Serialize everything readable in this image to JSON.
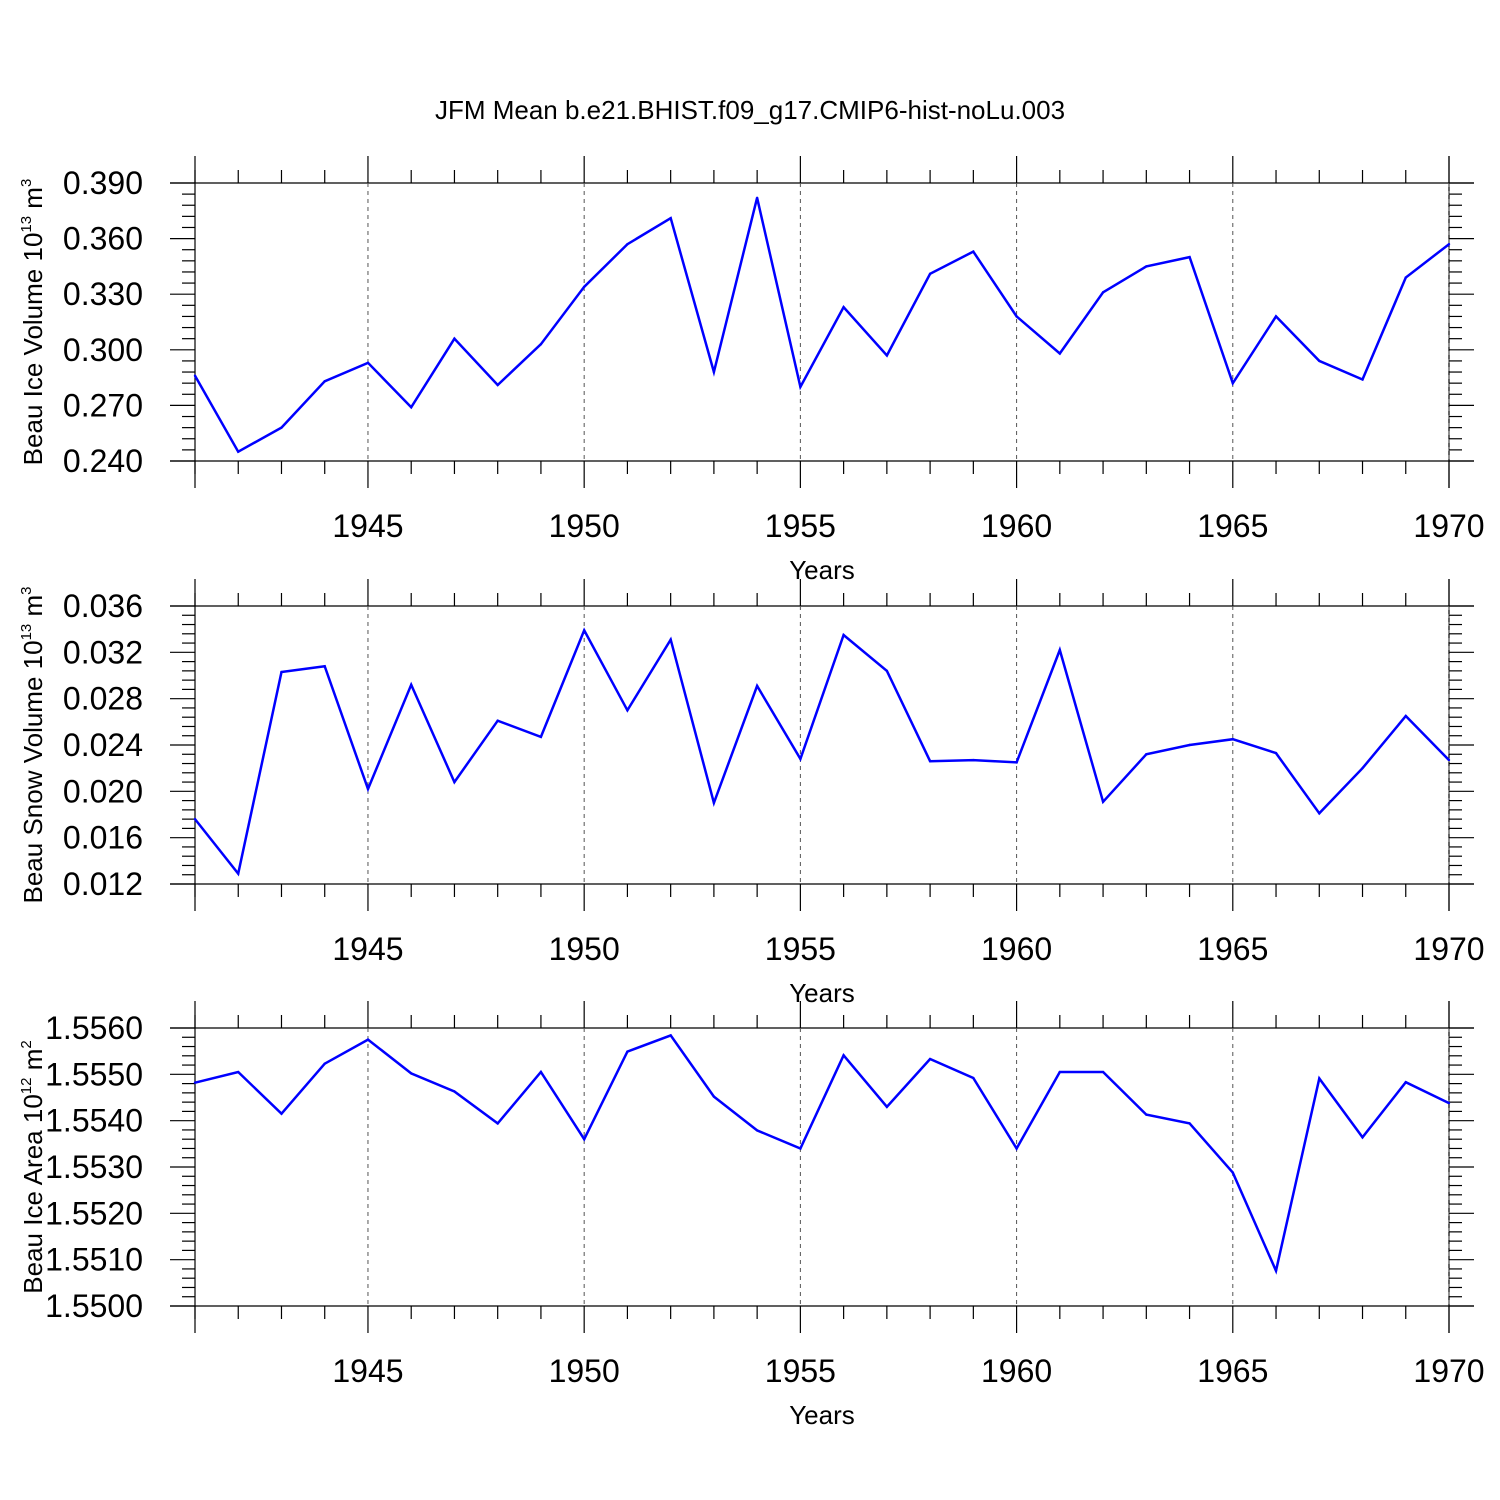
{
  "title": "JFM Mean b.e21.BHIST.f09_g17.CMIP6-hist-noLu.003",
  "colors": {
    "line": "#0000ff",
    "axis": "#000000",
    "grid": "#555555"
  },
  "chart_data": [
    {
      "type": "line",
      "title": "JFM Mean b.e21.BHIST.f09_g17.CMIP6-hist-noLu.003",
      "xlabel": "Years",
      "ylabel": {
        "text": "Beau Ice Volume 10",
        "exp": "13",
        "unit": " m",
        "unit_exp": "3"
      },
      "xlim": [
        1941,
        1970
      ],
      "ylim": [
        0.24,
        0.39
      ],
      "xticks": [
        "1945",
        "1950",
        "1955",
        "1960",
        "1965",
        "1970"
      ],
      "yticks": [
        "0.240",
        "0.270",
        "0.300",
        "0.330",
        "0.360",
        "0.390"
      ],
      "grid": "vertical dashed at major x ticks",
      "x": [
        1941,
        1942,
        1943,
        1944,
        1945,
        1946,
        1947,
        1948,
        1949,
        1950,
        1951,
        1952,
        1953,
        1954,
        1955,
        1956,
        1957,
        1958,
        1959,
        1960,
        1961,
        1962,
        1963,
        1964,
        1965,
        1966,
        1967,
        1968,
        1969,
        1970
      ],
      "y": [
        0.286,
        0.245,
        0.258,
        0.283,
        0.293,
        0.269,
        0.306,
        0.281,
        0.303,
        0.334,
        0.357,
        0.371,
        0.288,
        0.382,
        0.28,
        0.323,
        0.297,
        0.341,
        0.353,
        0.318,
        0.298,
        0.331,
        0.345,
        0.35,
        0.282,
        0.318,
        0.294,
        0.284,
        0.339,
        0.357
      ]
    },
    {
      "type": "line",
      "xlabel": "Years",
      "ylabel": {
        "text": "Beau Snow Volume 10",
        "exp": "13",
        "unit": " m",
        "unit_exp": "3"
      },
      "xlim": [
        1941,
        1970
      ],
      "ylim": [
        0.012,
        0.036
      ],
      "xticks": [
        "1945",
        "1950",
        "1955",
        "1960",
        "1965",
        "1970"
      ],
      "yticks": [
        "0.012",
        "0.016",
        "0.020",
        "0.024",
        "0.028",
        "0.032",
        "0.036"
      ],
      "grid": "vertical dashed at major x ticks",
      "x": [
        1941,
        1942,
        1943,
        1944,
        1945,
        1946,
        1947,
        1948,
        1949,
        1950,
        1951,
        1952,
        1953,
        1954,
        1955,
        1956,
        1957,
        1958,
        1959,
        1960,
        1961,
        1962,
        1963,
        1964,
        1965,
        1966,
        1967,
        1968,
        1969,
        1970
      ],
      "y": [
        0.0176,
        0.0129,
        0.0303,
        0.0308,
        0.0202,
        0.0292,
        0.0208,
        0.0261,
        0.0247,
        0.0339,
        0.027,
        0.0331,
        0.019,
        0.0291,
        0.0228,
        0.0335,
        0.0304,
        0.0226,
        0.0227,
        0.0225,
        0.0322,
        0.0191,
        0.0232,
        0.024,
        0.0245,
        0.0233,
        0.0181,
        0.022,
        0.0265,
        0.0227
      ]
    },
    {
      "type": "line",
      "xlabel": "Years",
      "ylabel": {
        "text": "Beau Ice Area 10",
        "exp": "12",
        "unit": " m",
        "unit_exp": "2"
      },
      "xlim": [
        1941,
        1970
      ],
      "ylim": [
        1.55,
        1.556
      ],
      "xticks": [
        "1945",
        "1950",
        "1955",
        "1960",
        "1965",
        "1970"
      ],
      "yticks": [
        "1.5500",
        "1.5510",
        "1.5520",
        "1.5530",
        "1.5540",
        "1.5550",
        "1.5560"
      ],
      "grid": "vertical dashed at major x ticks",
      "x": [
        1941,
        1942,
        1943,
        1944,
        1945,
        1946,
        1947,
        1948,
        1949,
        1950,
        1951,
        1952,
        1953,
        1954,
        1955,
        1956,
        1957,
        1958,
        1959,
        1960,
        1961,
        1962,
        1963,
        1964,
        1965,
        1966,
        1967,
        1968,
        1969,
        1970
      ],
      "y": [
        1.55482,
        1.55505,
        1.55415,
        1.55523,
        1.55575,
        1.55502,
        1.55463,
        1.55394,
        1.55505,
        1.5536,
        1.55549,
        1.55584,
        1.55452,
        1.55379,
        1.5534,
        1.55541,
        1.5543,
        1.55533,
        1.55492,
        1.5534,
        1.55505,
        1.55505,
        1.55413,
        1.55394,
        1.55288,
        1.55076,
        1.55491,
        1.55364,
        1.55483,
        1.55438
      ]
    }
  ]
}
